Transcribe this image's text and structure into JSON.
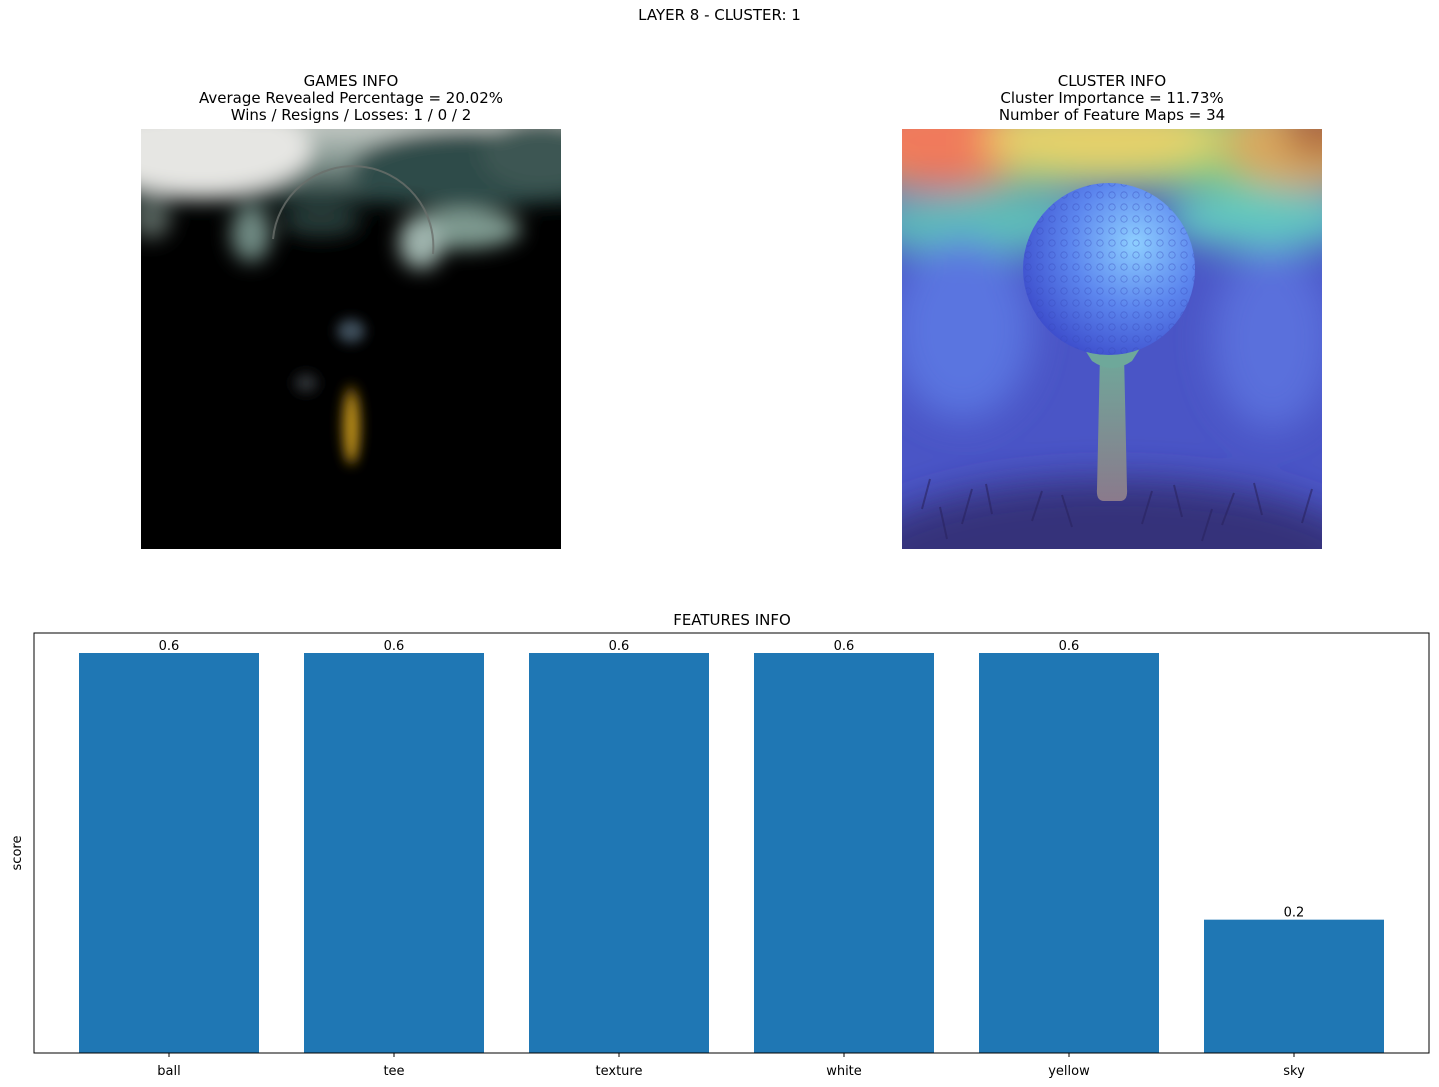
{
  "suptitle": "LAYER 8 - CLUSTER: 1",
  "games_info": {
    "title": "GAMES INFO",
    "line1": "Average Revealed Percentage = 20.02%",
    "line2": "Wins / Resigns / Losses: 1 / 0 / 2"
  },
  "cluster_info": {
    "title": "CLUSTER INFO",
    "line1": "Cluster Importance = 11.73%",
    "line2": "Number of Feature Maps = 34"
  },
  "chart_data": {
    "type": "bar",
    "title": "FEATURES INFO",
    "xlabel": "",
    "ylabel": "score",
    "categories": [
      "ball",
      "tee",
      "texture",
      "white",
      "yellow",
      "sky"
    ],
    "values": [
      0.6,
      0.6,
      0.6,
      0.6,
      0.6,
      0.2
    ],
    "value_labels": [
      "0.6",
      "0.6",
      "0.6",
      "0.6",
      "0.6",
      "0.2"
    ],
    "ylim": [
      0,
      0.63
    ],
    "grid": false,
    "bar_color": "#1f77b4",
    "y_ticks_visible": false
  }
}
